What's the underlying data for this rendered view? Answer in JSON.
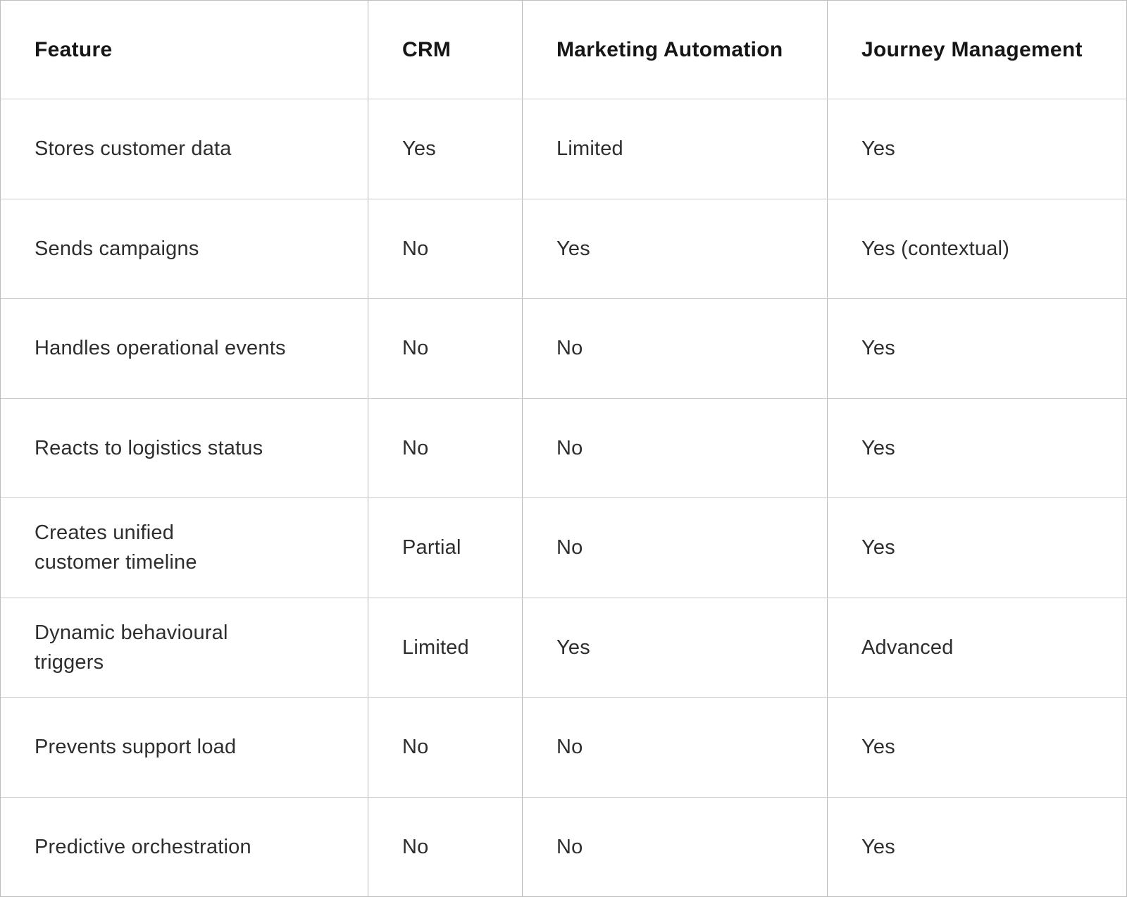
{
  "table": {
    "columns": [
      "Feature",
      "CRM",
      "Marketing Automation",
      "Journey Management"
    ],
    "rows": [
      {
        "cells": [
          "Stores customer data",
          "Yes",
          "Limited",
          "Yes"
        ]
      },
      {
        "cells": [
          "Sends campaigns",
          "No",
          "Yes",
          "Yes (contextual)"
        ]
      },
      {
        "cells": [
          "Handles operational events",
          "No",
          "No",
          "Yes"
        ]
      },
      {
        "cells": [
          "Reacts to logistics status",
          "No",
          "No",
          "Yes"
        ]
      },
      {
        "cells": [
          "Creates unified\ncustomer timeline",
          "Partial",
          "No",
          "Yes"
        ]
      },
      {
        "cells": [
          "Dynamic behavioural\ntriggers",
          "Limited",
          "Yes",
          "Advanced"
        ]
      },
      {
        "cells": [
          "Prevents support load",
          "No",
          "No",
          "Yes"
        ]
      },
      {
        "cells": [
          "Predictive orchestration",
          "No",
          "No",
          "Yes"
        ]
      }
    ]
  },
  "colors": {
    "background": "#ffffff",
    "grid_line": "#c4c4c4",
    "header_text": "#161616",
    "body_text": "#2e2e2e"
  }
}
